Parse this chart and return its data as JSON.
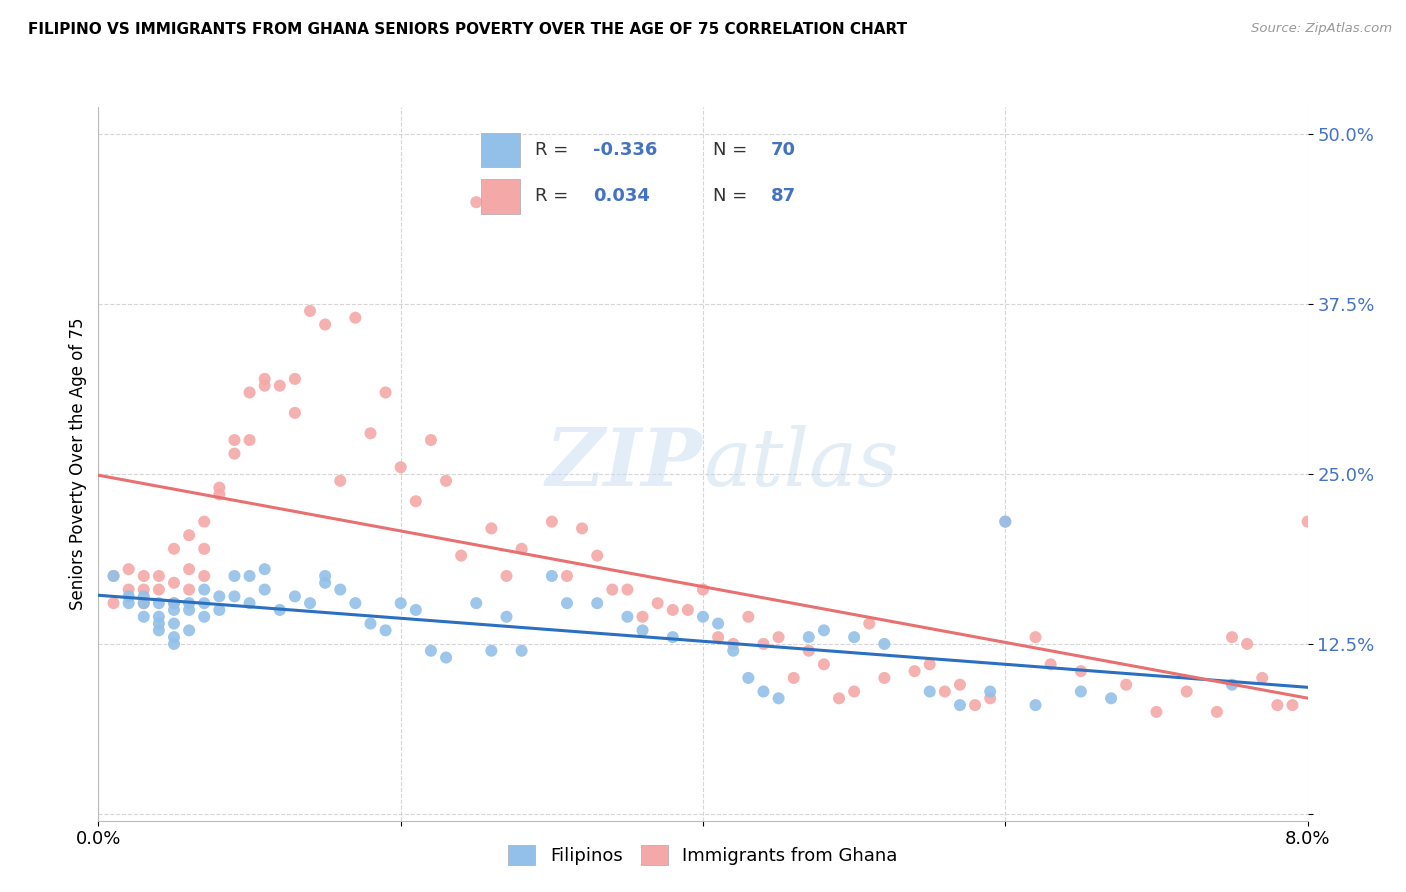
{
  "title": "FILIPINO VS IMMIGRANTS FROM GHANA SENIORS POVERTY OVER THE AGE OF 75 CORRELATION CHART",
  "source": "Source: ZipAtlas.com",
  "ylabel": "Seniors Poverty Over the Age of 75",
  "xlim": [
    0.0,
    0.08
  ],
  "ylim": [
    -0.005,
    0.52
  ],
  "yticks": [
    0.0,
    0.125,
    0.25,
    0.375,
    0.5
  ],
  "ytick_labels": [
    "",
    "12.5%",
    "25.0%",
    "37.5%",
    "50.0%"
  ],
  "xticks": [
    0.0,
    0.02,
    0.04,
    0.06,
    0.08
  ],
  "xtick_labels": [
    "0.0%",
    "",
    "",
    "",
    "8.0%"
  ],
  "filipinos_R": -0.336,
  "filipinos_N": 70,
  "ghana_R": 0.034,
  "ghana_N": 87,
  "filipinos_color": "#92C0E8",
  "ghana_color": "#F4A8A8",
  "filipinos_line_color": "#2B70C0",
  "ghana_line_color": "#E87070",
  "watermark_zip": "ZIP",
  "watermark_atlas": "atlas",
  "legend_label_1": "Filipinos",
  "legend_label_2": "Immigrants from Ghana",
  "filipinos_x": [
    0.001,
    0.002,
    0.002,
    0.003,
    0.003,
    0.003,
    0.004,
    0.004,
    0.004,
    0.004,
    0.005,
    0.005,
    0.005,
    0.005,
    0.005,
    0.006,
    0.006,
    0.006,
    0.007,
    0.007,
    0.007,
    0.008,
    0.008,
    0.009,
    0.009,
    0.01,
    0.01,
    0.011,
    0.011,
    0.012,
    0.013,
    0.014,
    0.015,
    0.015,
    0.016,
    0.017,
    0.018,
    0.019,
    0.02,
    0.021,
    0.022,
    0.023,
    0.025,
    0.026,
    0.027,
    0.028,
    0.03,
    0.031,
    0.033,
    0.035,
    0.036,
    0.038,
    0.04,
    0.041,
    0.042,
    0.043,
    0.044,
    0.045,
    0.047,
    0.048,
    0.05,
    0.052,
    0.055,
    0.057,
    0.059,
    0.06,
    0.062,
    0.065,
    0.067,
    0.075
  ],
  "filipinos_y": [
    0.175,
    0.16,
    0.155,
    0.16,
    0.155,
    0.145,
    0.155,
    0.145,
    0.14,
    0.135,
    0.155,
    0.15,
    0.14,
    0.13,
    0.125,
    0.155,
    0.15,
    0.135,
    0.165,
    0.155,
    0.145,
    0.16,
    0.15,
    0.175,
    0.16,
    0.175,
    0.155,
    0.18,
    0.165,
    0.15,
    0.16,
    0.155,
    0.175,
    0.17,
    0.165,
    0.155,
    0.14,
    0.135,
    0.155,
    0.15,
    0.12,
    0.115,
    0.155,
    0.12,
    0.145,
    0.12,
    0.175,
    0.155,
    0.155,
    0.145,
    0.135,
    0.13,
    0.145,
    0.14,
    0.12,
    0.1,
    0.09,
    0.085,
    0.13,
    0.135,
    0.13,
    0.125,
    0.09,
    0.08,
    0.09,
    0.215,
    0.08,
    0.09,
    0.085,
    0.095
  ],
  "ghana_x": [
    0.001,
    0.001,
    0.002,
    0.002,
    0.003,
    0.003,
    0.003,
    0.004,
    0.004,
    0.005,
    0.005,
    0.005,
    0.006,
    0.006,
    0.006,
    0.007,
    0.007,
    0.007,
    0.008,
    0.008,
    0.009,
    0.009,
    0.01,
    0.01,
    0.011,
    0.011,
    0.012,
    0.013,
    0.013,
    0.014,
    0.015,
    0.016,
    0.017,
    0.018,
    0.019,
    0.02,
    0.021,
    0.022,
    0.023,
    0.024,
    0.025,
    0.026,
    0.027,
    0.028,
    0.03,
    0.031,
    0.032,
    0.033,
    0.034,
    0.035,
    0.036,
    0.037,
    0.038,
    0.039,
    0.04,
    0.041,
    0.042,
    0.043,
    0.044,
    0.045,
    0.046,
    0.047,
    0.048,
    0.049,
    0.05,
    0.051,
    0.052,
    0.054,
    0.055,
    0.056,
    0.057,
    0.058,
    0.059,
    0.06,
    0.062,
    0.063,
    0.065,
    0.068,
    0.07,
    0.072,
    0.074,
    0.075,
    0.076,
    0.077,
    0.078,
    0.079,
    0.08
  ],
  "ghana_y": [
    0.155,
    0.175,
    0.18,
    0.165,
    0.175,
    0.165,
    0.155,
    0.175,
    0.165,
    0.195,
    0.17,
    0.155,
    0.205,
    0.18,
    0.165,
    0.215,
    0.195,
    0.175,
    0.235,
    0.24,
    0.275,
    0.265,
    0.275,
    0.31,
    0.32,
    0.315,
    0.315,
    0.32,
    0.295,
    0.37,
    0.36,
    0.245,
    0.365,
    0.28,
    0.31,
    0.255,
    0.23,
    0.275,
    0.245,
    0.19,
    0.45,
    0.21,
    0.175,
    0.195,
    0.215,
    0.175,
    0.21,
    0.19,
    0.165,
    0.165,
    0.145,
    0.155,
    0.15,
    0.15,
    0.165,
    0.13,
    0.125,
    0.145,
    0.125,
    0.13,
    0.1,
    0.12,
    0.11,
    0.085,
    0.09,
    0.14,
    0.1,
    0.105,
    0.11,
    0.09,
    0.095,
    0.08,
    0.085,
    0.215,
    0.13,
    0.11,
    0.105,
    0.095,
    0.075,
    0.09,
    0.075,
    0.13,
    0.125,
    0.1,
    0.08,
    0.08,
    0.215
  ]
}
